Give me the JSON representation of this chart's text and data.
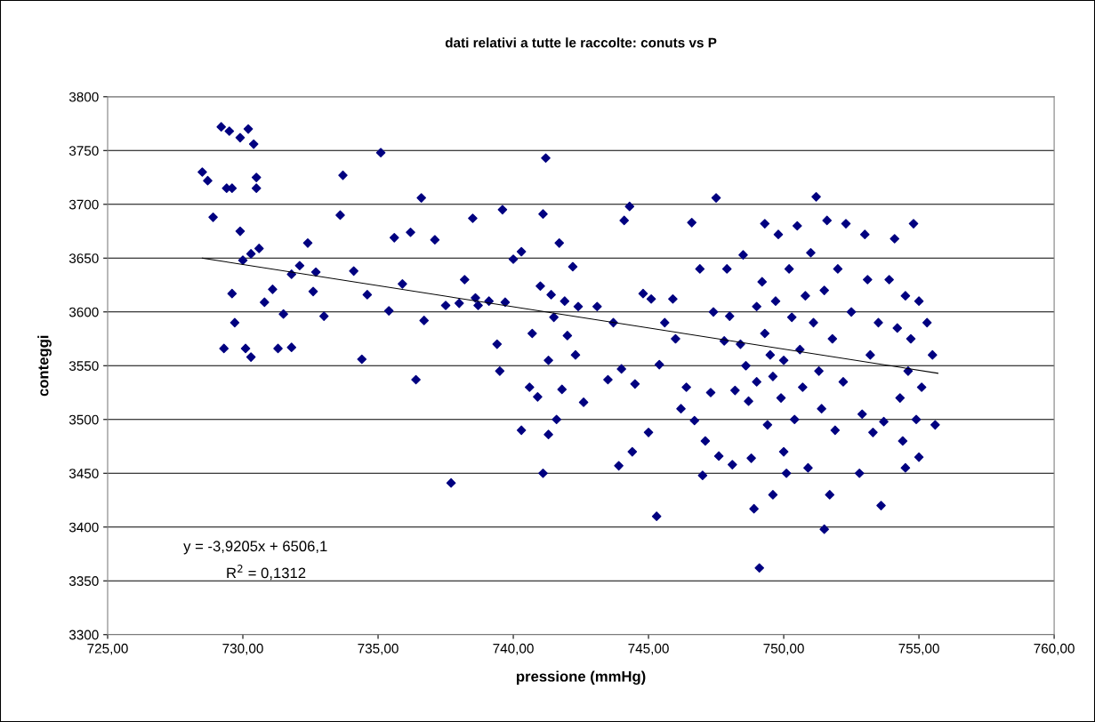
{
  "chart_data": {
    "type": "scatter",
    "title": "dati relativi a tutte le raccolte: conuts vs P",
    "xlabel": "pressione (mmHg)",
    "ylabel": "conteggi",
    "xlim": [
      725,
      760
    ],
    "ylim": [
      3300,
      3800
    ],
    "xticks": [
      {
        "value": 725,
        "label": "725,00"
      },
      {
        "value": 730,
        "label": "730,00"
      },
      {
        "value": 735,
        "label": "735,00"
      },
      {
        "value": 740,
        "label": "740,00"
      },
      {
        "value": 745,
        "label": "745,00"
      },
      {
        "value": 750,
        "label": "750,00"
      },
      {
        "value": 755,
        "label": "755,00"
      },
      {
        "value": 760,
        "label": "760,00"
      }
    ],
    "yticks": [
      3300,
      3350,
      3400,
      3450,
      3500,
      3550,
      3600,
      3650,
      3700,
      3750,
      3800
    ],
    "grid": "y",
    "legend": false,
    "marker": "diamond",
    "annotations": [
      "y = -3,9205x + 6506,1",
      "R$^{2}$ = 0,1312"
    ],
    "series": [
      {
        "color": "#000080",
        "x": [
          728.5,
          728.7,
          728.9,
          729.2,
          729.5,
          729.9,
          730.2,
          730.4,
          729.4,
          729.6,
          730.5,
          730.5,
          729.9,
          730.0,
          730.3,
          730.6,
          729.6,
          729.7,
          729.3,
          730.1,
          730.3,
          730.8,
          731.1,
          731.5,
          731.3,
          731.8,
          731.8,
          732.1,
          732.4,
          732.6,
          732.7,
          733.0,
          733.6,
          733.7,
          734.1,
          734.4,
          734.6,
          735.1,
          735.4,
          735.6,
          735.9,
          736.2,
          736.4,
          736.6,
          736.7,
          737.1,
          737.5,
          737.7,
          738.0,
          738.2,
          738.5,
          738.7,
          738.6,
          739.1,
          739.4,
          739.5,
          739.6,
          739.7,
          740.0,
          740.3,
          740.3,
          740.6,
          740.7,
          740.9,
          741.0,
          741.1,
          741.2,
          741.1,
          741.3,
          741.3,
          741.4,
          741.5,
          741.6,
          741.7,
          741.8,
          741.9,
          742.0,
          742.2,
          742.3,
          742.4,
          742.6,
          743.1,
          743.5,
          743.7,
          743.9,
          744.0,
          744.1,
          744.3,
          744.4,
          744.5,
          744.8,
          745.0,
          745.1,
          745.3,
          745.4,
          745.6,
          745.9,
          746.0,
          746.2,
          746.4,
          746.6,
          746.7,
          746.9,
          747.0,
          747.1,
          747.3,
          747.4,
          747.5,
          747.6,
          747.8,
          747.9,
          748.0,
          748.1,
          748.2,
          748.4,
          748.5,
          748.6,
          748.7,
          748.8,
          748.9,
          749.0,
          749.0,
          749.1,
          749.2,
          749.3,
          749.3,
          749.4,
          749.5,
          749.6,
          749.6,
          749.7,
          749.8,
          749.9,
          750.0,
          750.0,
          750.1,
          750.2,
          750.3,
          750.4,
          750.5,
          750.6,
          750.7,
          750.8,
          750.9,
          751.0,
          751.1,
          751.2,
          751.3,
          751.4,
          751.5,
          751.5,
          751.6,
          751.7,
          751.8,
          751.9,
          752.0,
          752.2,
          752.3,
          752.5,
          752.8,
          752.9,
          753.0,
          753.1,
          753.2,
          753.3,
          753.5,
          753.6,
          753.7,
          753.9,
          754.1,
          754.2,
          754.3,
          754.4,
          754.5,
          754.5,
          754.6,
          754.7,
          754.8,
          754.9,
          755.0,
          755.0,
          755.1,
          755.3,
          755.5,
          755.6
        ],
        "values": [
          3730,
          3722,
          3688,
          3772,
          3768,
          3762,
          3770,
          3756,
          3715,
          3715,
          3725,
          3715,
          3675,
          3648,
          3654,
          3659,
          3617,
          3590,
          3566,
          3566,
          3558,
          3609,
          3621,
          3598,
          3566,
          3567,
          3635,
          3643,
          3664,
          3619,
          3637,
          3596,
          3690,
          3727,
          3638,
          3556,
          3616,
          3748,
          3601,
          3669,
          3626,
          3674,
          3537,
          3706,
          3592,
          3667,
          3606,
          3441,
          3608,
          3630,
          3687,
          3606,
          3613,
          3610,
          3570,
          3545,
          3695,
          3609,
          3649,
          3656,
          3490,
          3530,
          3580,
          3521,
          3624,
          3691,
          3743,
          3450,
          3555,
          3486,
          3616,
          3595,
          3500,
          3664,
          3528,
          3610,
          3578,
          3642,
          3560,
          3605,
          3516,
          3605,
          3537,
          3590,
          3457,
          3547,
          3685,
          3698,
          3470,
          3533,
          3617,
          3488,
          3612,
          3410,
          3551,
          3590,
          3612,
          3575,
          3510,
          3530,
          3683,
          3499,
          3640,
          3448,
          3480,
          3525,
          3600,
          3706,
          3466,
          3573,
          3640,
          3596,
          3458,
          3527,
          3570,
          3653,
          3550,
          3517,
          3464,
          3417,
          3605,
          3535,
          3362,
          3628,
          3682,
          3580,
          3495,
          3560,
          3540,
          3430,
          3610,
          3672,
          3520,
          3555,
          3470,
          3450,
          3640,
          3595,
          3500,
          3680,
          3565,
          3530,
          3615,
          3455,
          3655,
          3590,
          3707,
          3545,
          3510,
          3398,
          3620,
          3685,
          3430,
          3575,
          3490,
          3640,
          3535,
          3682,
          3600,
          3450,
          3505,
          3672,
          3630,
          3560,
          3488,
          3590,
          3420,
          3498,
          3630,
          3668,
          3585,
          3520,
          3480,
          3615,
          3455,
          3545,
          3575,
          3682,
          3500,
          3610,
          3465,
          3530,
          3590,
          3560,
          3495
        ]
      },
      {
        "type": "line",
        "color": "#000000",
        "marker": "none",
        "x": [
          728.5,
          755.7
        ],
        "values": [
          3650,
          3543
        ]
      }
    ]
  }
}
